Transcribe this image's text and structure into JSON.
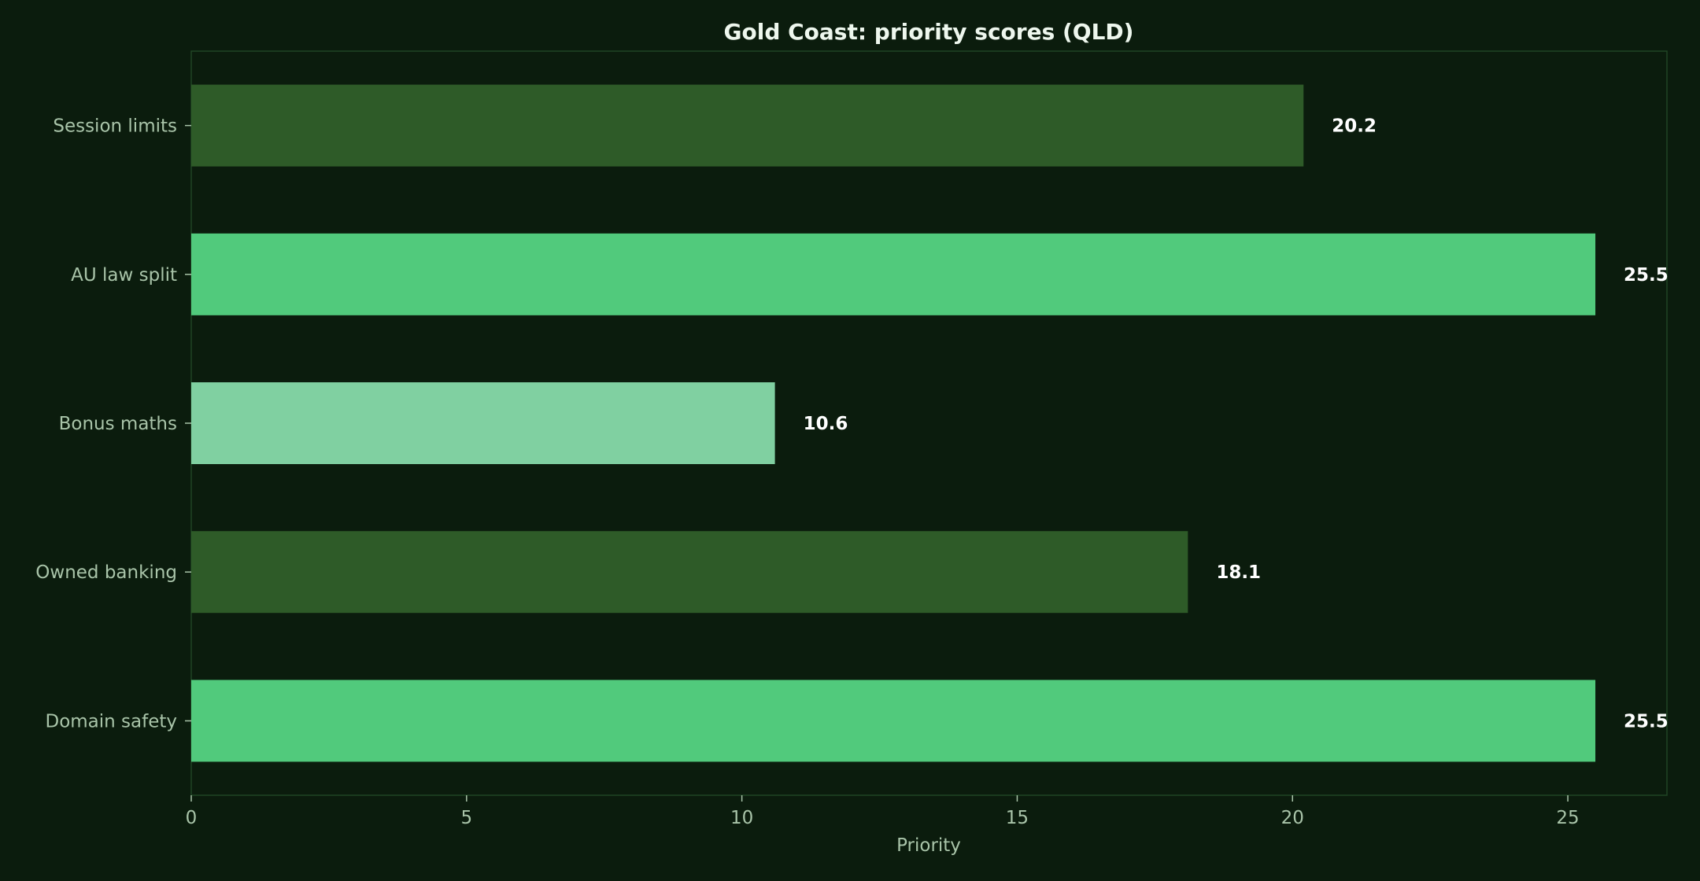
{
  "chart_data": {
    "type": "bar",
    "orientation": "horizontal",
    "title": "Gold Coast: priority scores (QLD)",
    "xlabel": "Priority",
    "ylabel": "",
    "xlim": [
      0,
      26.8
    ],
    "x_ticks": [
      0,
      5,
      10,
      15,
      20,
      25
    ],
    "grid": false,
    "legend": "none",
    "categories": [
      "Session limits",
      "AU law split",
      "Bonus maths",
      "Owned banking",
      "Domain safety"
    ],
    "values": [
      20.2,
      25.5,
      10.6,
      18.1,
      25.5
    ],
    "value_labels": [
      "20.2",
      "25.5",
      "10.6",
      "18.1",
      "25.5"
    ],
    "bar_colors": [
      "#2e5b28",
      "#51ca7c",
      "#80d0a1",
      "#2e5b28",
      "#51ca7c"
    ],
    "colors": {
      "background": "#0b1c0d",
      "frame": "#1f4525",
      "title": "#eef7ee",
      "axis_text": "#a9c4a9",
      "value_label": "#ffffff"
    }
  }
}
